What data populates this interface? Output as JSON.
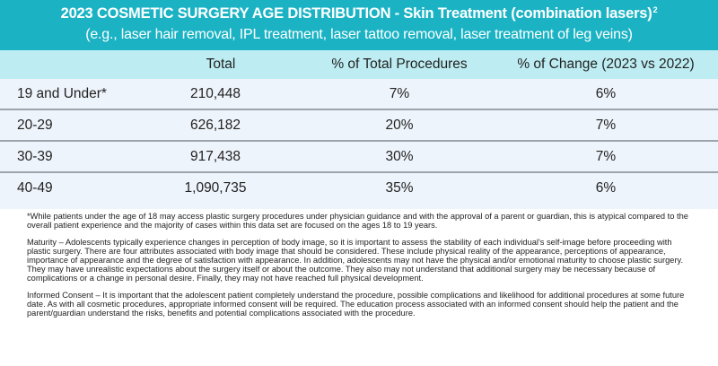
{
  "header": {
    "title": "2023 COSMETIC SURGERY AGE DISTRIBUTION - Skin Treatment (combination lasers)",
    "title_superscript": "2",
    "subtitle": "(e.g., laser hair removal, IPL treatment, laser tattoo removal, laser treatment of leg veins)"
  },
  "colors": {
    "title_bar": "#1bb3c4",
    "header_row": "#bdedf2",
    "data_row": "#eef4fb",
    "row_divider": "#9ea4ac"
  },
  "table": {
    "columns": [
      "",
      "Total",
      "% of Total Procedures",
      "% of Change (2023 vs 2022)"
    ],
    "rows": [
      {
        "age": "19 and Under*",
        "total": "210,448",
        "pct_total": "7%",
        "pct_change": "6%"
      },
      {
        "age": "20-29",
        "total": "626,182",
        "pct_total": "20%",
        "pct_change": "7%"
      },
      {
        "age": "30-39",
        "total": "917,438",
        "pct_total": "30%",
        "pct_change": "7%"
      },
      {
        "age": "40-49",
        "total": "1,090,735",
        "pct_total": "35%",
        "pct_change": "6%"
      }
    ]
  },
  "notes": [
    "*While patients under the age of 18 may access plastic surgery procedures under physician guidance and with the approval of a parent or guardian, this is atypical compared to the overall patient experience and the majority of cases within this data set are focused on the ages 18 to 19 years.",
    "Maturity – Adolescents typically experience changes in perception of body image, so it is important to assess the stability of each individual's self-image before proceeding with plastic surgery. There are four attributes associated with body image that should be considered. These include physical reality of the appearance, perceptions of appearance, importance of appearance and the degree of satisfaction with appearance. In addition, adolescents may not have the physical and/or emotional maturity to choose plastic surgery. They may have unrealistic expectations about the surgery itself or about the outcome. They also may not understand that additional surgery may be necessary because of complications or a change in personal desire. Finally, they may not have reached full physical development.",
    "Informed Consent – It is important that the adolescent patient completely understand the procedure, possible complications and likelihood for additional procedures at some future date. As with all cosmetic procedures, appropriate informed consent will be required. The education process associated with an informed consent should help the patient and the parent/guardian understand the risks, benefits and potential complications associated with the procedure."
  ]
}
